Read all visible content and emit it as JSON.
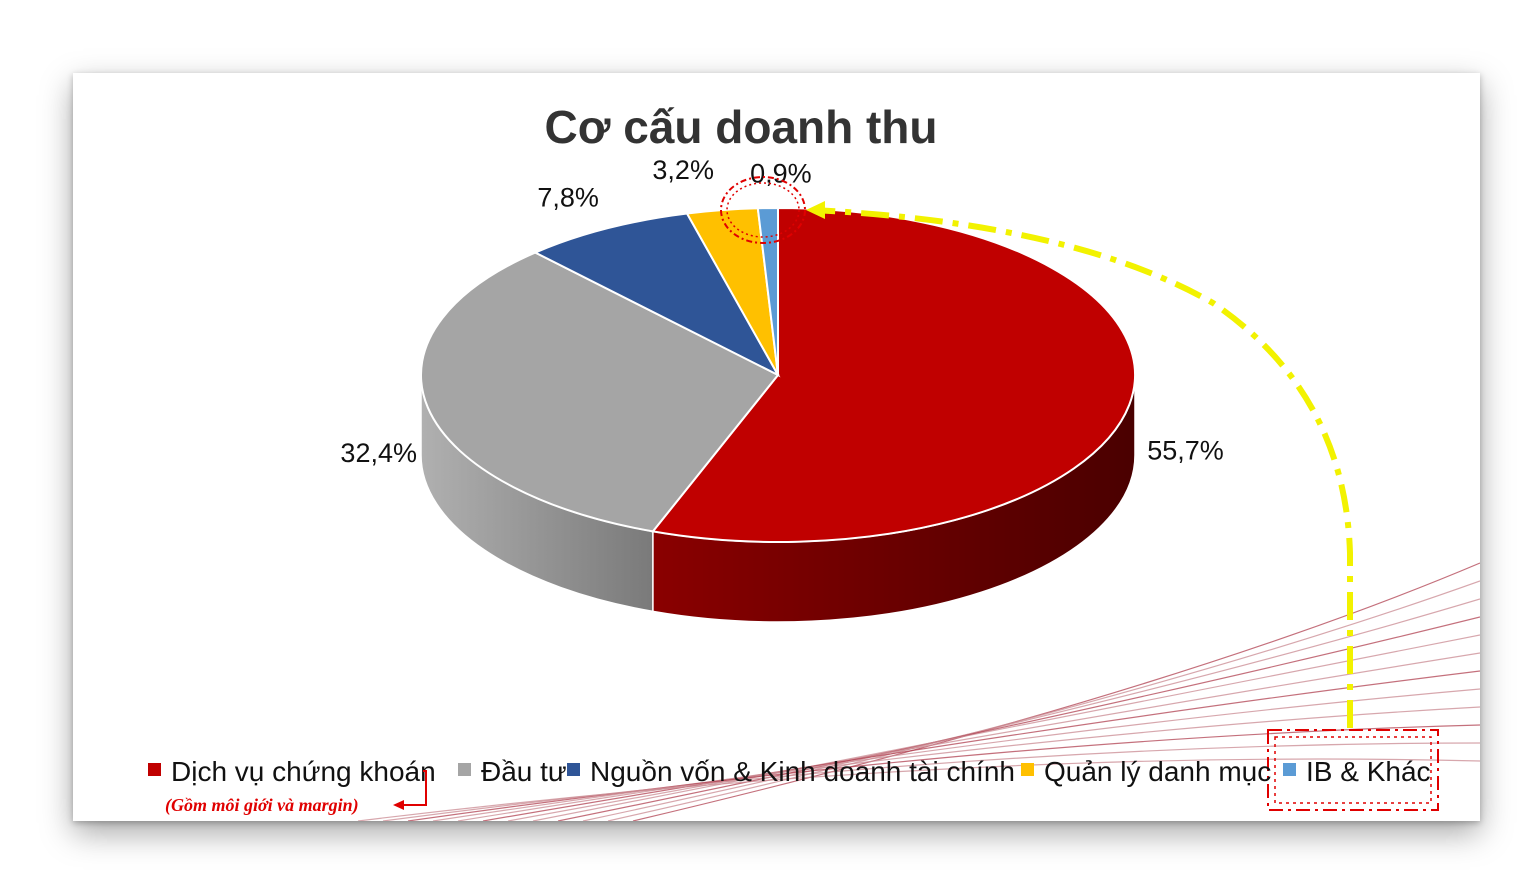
{
  "chart_data": {
    "type": "pie",
    "title": "Cơ cấu doanh thu",
    "style": "3d-exploded-pie",
    "categories": [
      "Dịch vụ chứng khoán",
      "Đầu tư",
      "Nguồn vốn & Kinh doanh tài chính",
      "Quản lý danh mục",
      "IB & Khác"
    ],
    "values": [
      55.7,
      32.4,
      7.8,
      3.2,
      0.9
    ],
    "value_labels": [
      "55,7%",
      "32,4%",
      "7,8%",
      "3,2%",
      "0,9%"
    ],
    "colors": [
      "#c00000",
      "#a5a5a5",
      "#2f5597",
      "#ffc000",
      "#5b9bd5"
    ],
    "side_colors": [
      "#6a0000",
      "#7f7f7f",
      "#1f3864",
      "#bf9000",
      "#2e75b6"
    ],
    "legend_position": "bottom",
    "annotation": "(Gồm môi giới và margin)",
    "highlight_label": "0,9%",
    "highlight_color": "#ffff00",
    "highlight_ring_color": "#e00000"
  }
}
